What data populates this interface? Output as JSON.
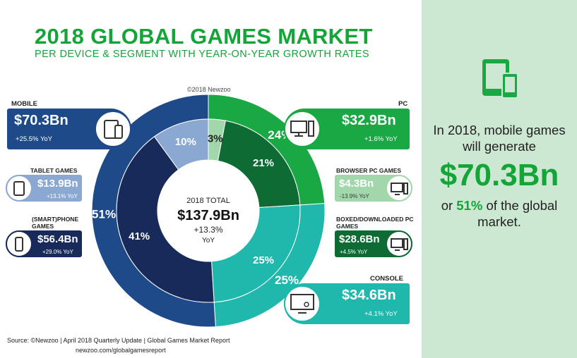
{
  "title": "2018 GLOBAL GAMES MARKET",
  "subtitle": "PER DEVICE & SEGMENT WITH YEAR-ON-YEAR GROWTH RATES",
  "copyright": "©2018 Newzoo",
  "center": {
    "label": "2018 TOTAL",
    "value": "$137.9Bn",
    "growth": "+13.3%",
    "unit": "YoY"
  },
  "segments": {
    "mobile": {
      "title": "MOBILE",
      "value": "$70.3Bn",
      "yoy": "+25.5% YoY"
    },
    "tablet": {
      "title": "TABLET GAMES",
      "value": "$13.9Bn",
      "yoy": "+13.1% YoY"
    },
    "phone": {
      "title": "(SMART)PHONE GAMES",
      "value": "$56.4Bn",
      "yoy": "+29.0% YoY"
    },
    "pc": {
      "title": "PC",
      "value": "$32.9Bn",
      "yoy": "+1.6% YoY"
    },
    "browser": {
      "title": "BROWSER PC GAMES",
      "value": "$4.3Bn",
      "yoy": "-13.9% YoY"
    },
    "boxed": {
      "title": "BOXED/DOWNLOADED PC GAMES",
      "value": "$28.6Bn",
      "yoy": "+4.5% YoY"
    },
    "console": {
      "title": "CONSOLE",
      "value": "$34.6Bn",
      "yoy": "+4.1% YoY"
    }
  },
  "sidebar": {
    "line1": "In 2018, mobile games",
    "line2": "will generate",
    "amount": "$70.3Bn",
    "pct": "51%",
    "line3_pre": "or ",
    "line3_post": " of the global",
    "line4": "market."
  },
  "footer": {
    "source": "Source: ©Newzoo | April 2018 Quarterly Update | Global Games Market Report",
    "url": "newzoo.com/globalgamesreport"
  },
  "colors": {
    "mobile": "#1e4a8a",
    "tablet": "#8aa8d2",
    "phone": "#172a5a",
    "pc": "#19a843",
    "browser": "#a2d6ab",
    "boxed": "#0d6b33",
    "console": "#20b7ad",
    "accent": "#13a538",
    "sidebar_bg": "#cde8d2"
  },
  "chart_data": {
    "type": "pie",
    "outer_ring": [
      {
        "name": "PC",
        "value": 24
      },
      {
        "name": "CONSOLE",
        "value": 25
      },
      {
        "name": "MOBILE",
        "value": 51
      }
    ],
    "inner_ring": [
      {
        "name": "BROWSER PC GAMES",
        "value": 3
      },
      {
        "name": "BOXED/DOWNLOADED PC GAMES",
        "value": 21
      },
      {
        "name": "CONSOLE",
        "value": 25
      },
      {
        "name": "(SMART)PHONE GAMES",
        "value": 41
      },
      {
        "name": "TABLET GAMES",
        "value": 10
      }
    ],
    "labels": {
      "outer": [
        "24%",
        "25%",
        "51%"
      ],
      "inner": [
        "3%",
        "21%",
        "25%",
        "41%",
        "10%"
      ]
    }
  }
}
